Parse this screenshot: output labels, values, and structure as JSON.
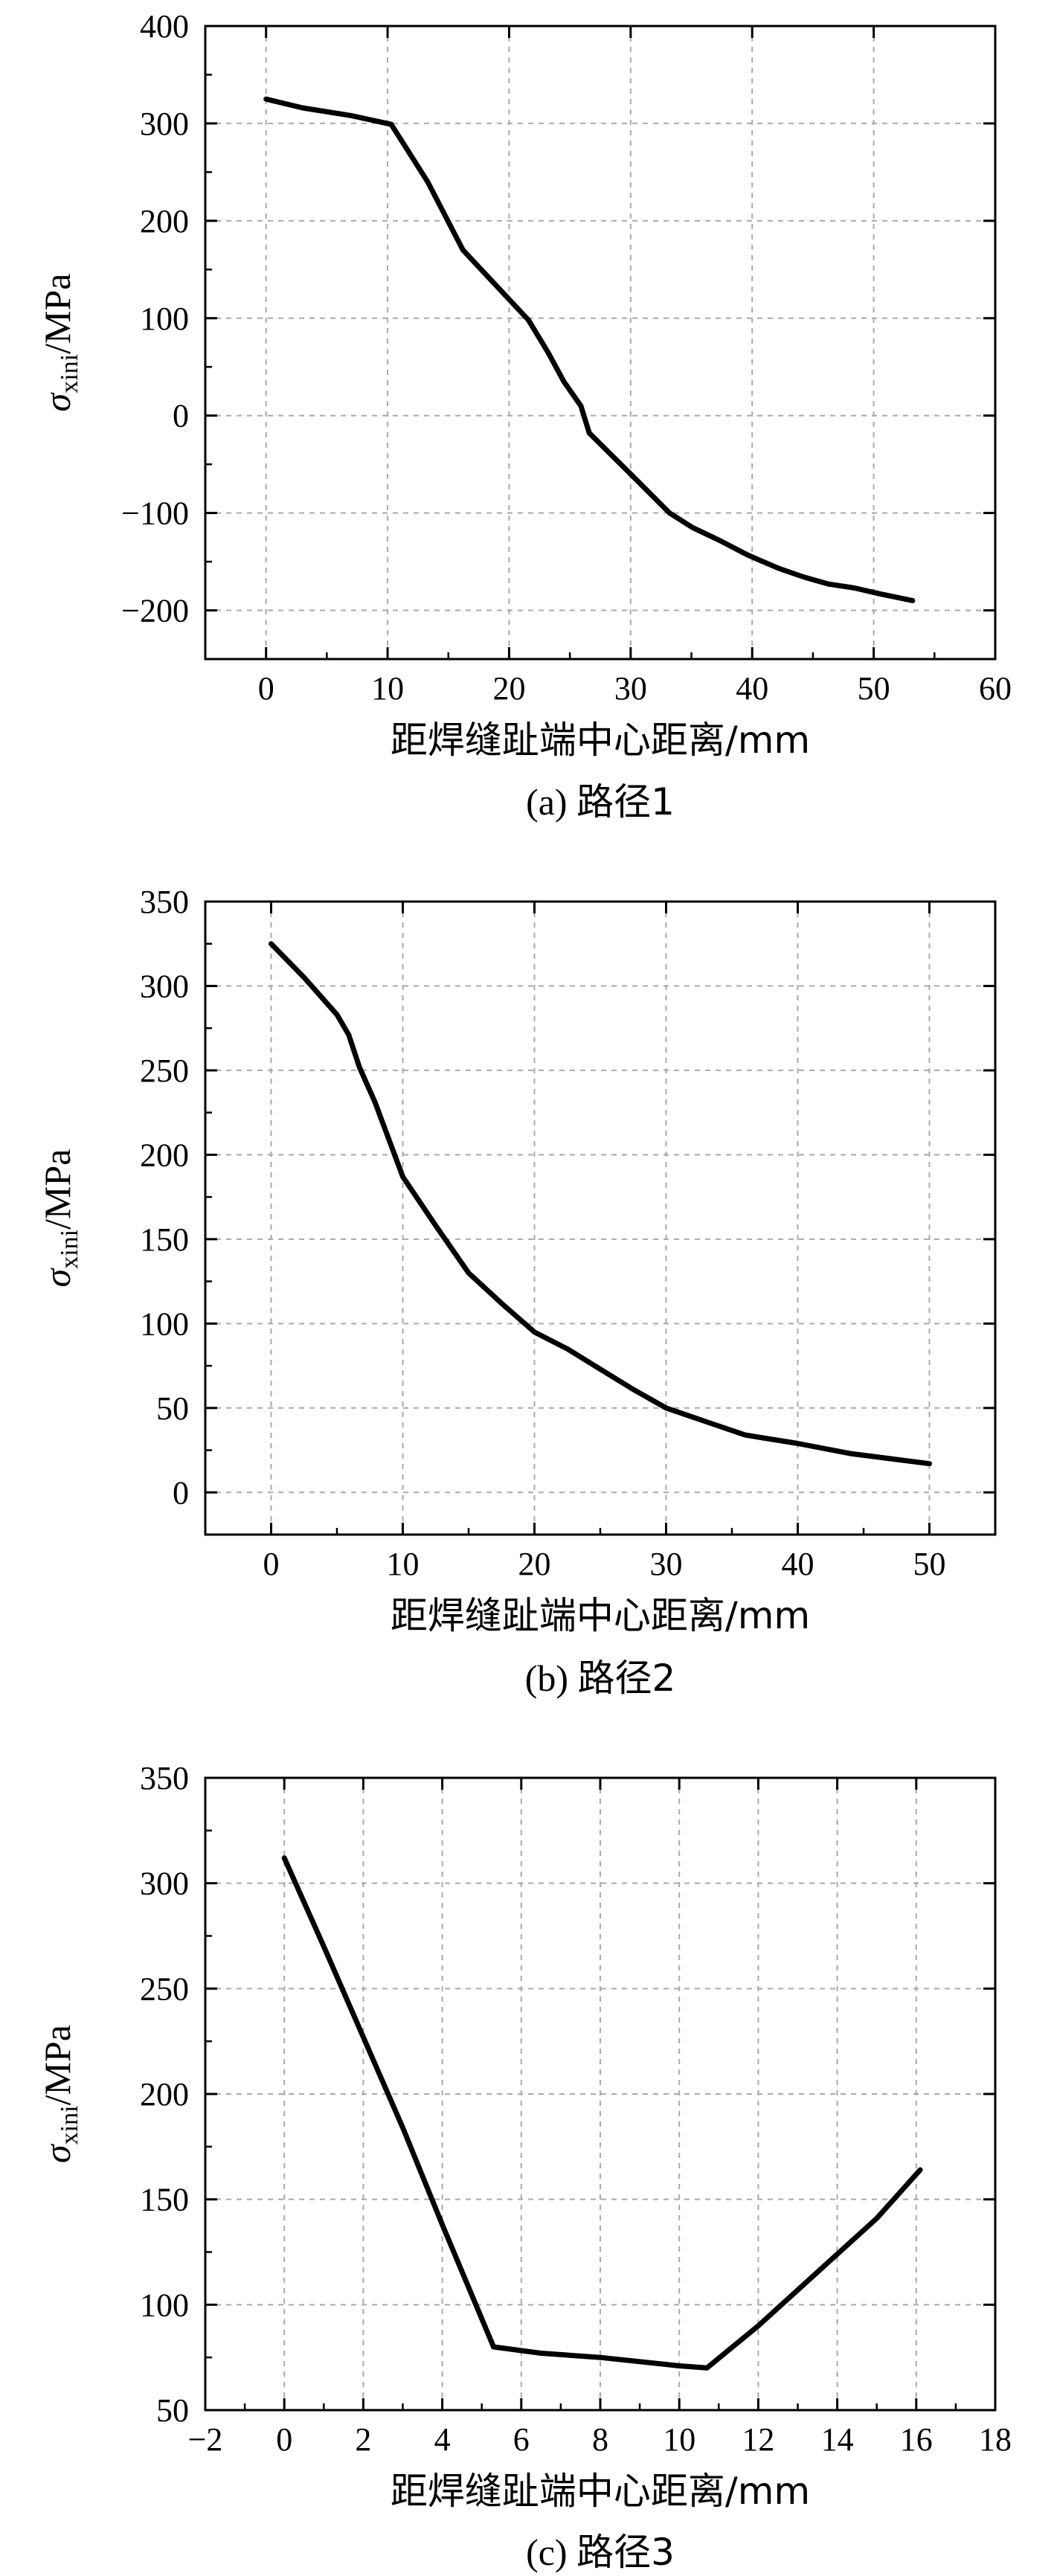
{
  "chart_data": [
    {
      "type": "line",
      "caption_prefix": "(a) ",
      "caption_cjk": "路径1",
      "xlabel": "距焊缝趾端中心距离/mm",
      "ylabel_main": "σ",
      "ylabel_sub": "xini",
      "ylabel_unit": "/MPa",
      "xlim": [
        -5,
        60
      ],
      "ylim": [
        -250,
        400
      ],
      "xticks": [
        0,
        10,
        20,
        30,
        40,
        50,
        60
      ],
      "yticks": [
        -200,
        -100,
        0,
        100,
        200,
        300,
        400
      ],
      "xtick_labels": [
        "0",
        "10",
        "20",
        "30",
        "40",
        "50",
        "60"
      ],
      "ytick_labels": [
        "−200",
        "−100",
        "0",
        "100",
        "200",
        "300",
        "400"
      ],
      "grid": true,
      "series": [
        {
          "x": [
            0,
            3,
            7,
            10.3,
            13.3,
            16.2,
            19.2,
            21.6,
            23.2,
            24.5,
            25.9,
            26.6,
            30,
            33.2,
            35.1,
            37.3,
            39.6,
            42.2,
            44.3,
            46.3,
            48.4,
            50.5,
            53.2
          ],
          "y": [
            325,
            316,
            308,
            299,
            240,
            170,
            130,
            98,
            65,
            35,
            10,
            -18,
            -60,
            -100,
            -115,
            -128,
            -143,
            -157,
            -166,
            -173,
            -177,
            -183,
            -190
          ]
        }
      ]
    },
    {
      "type": "line",
      "caption_prefix": "(b) ",
      "caption_cjk": "路径2",
      "xlabel": "距焊缝趾端中心距离/mm",
      "ylabel_main": "σ",
      "ylabel_sub": "xini",
      "ylabel_unit": "/MPa",
      "xlim": [
        -5,
        55
      ],
      "ylim": [
        -25,
        350
      ],
      "xticks": [
        0,
        10,
        20,
        30,
        40,
        50
      ],
      "yticks": [
        0,
        50,
        100,
        150,
        200,
        250,
        300,
        350
      ],
      "xtick_labels": [
        "0",
        "10",
        "20",
        "30",
        "40",
        "50"
      ],
      "ytick_labels": [
        "0",
        "50",
        "100",
        "150",
        "200",
        "250",
        "300",
        "350"
      ],
      "grid": true,
      "series": [
        {
          "x": [
            0,
            2.5,
            5,
            5.9,
            6.7,
            7.9,
            10,
            12.5,
            15,
            17.5,
            20,
            22.5,
            25,
            27.5,
            30,
            33,
            36,
            40,
            44,
            47,
            50
          ],
          "y": [
            325,
            305,
            283,
            271,
            252,
            231,
            187,
            158,
            130,
            112,
            95,
            85,
            73,
            61,
            50,
            42,
            34,
            29,
            23,
            20,
            17
          ]
        }
      ]
    },
    {
      "type": "line",
      "caption_prefix": "(c) ",
      "caption_cjk": "路径3",
      "xlabel": "距焊缝趾端中心距离/mm",
      "ylabel_main": "σ",
      "ylabel_sub": "xini",
      "ylabel_unit": "/MPa",
      "xlim": [
        -2,
        18
      ],
      "ylim": [
        50,
        350
      ],
      "xticks": [
        -2,
        0,
        2,
        4,
        6,
        8,
        10,
        12,
        14,
        16,
        18
      ],
      "yticks": [
        50,
        100,
        150,
        200,
        250,
        300,
        350
      ],
      "xtick_labels": [
        "−2",
        "0",
        "2",
        "4",
        "6",
        "8",
        "10",
        "12",
        "14",
        "16",
        "18"
      ],
      "ytick_labels": [
        "50",
        "100",
        "150",
        "200",
        "250",
        "300",
        "350"
      ],
      "grid": true,
      "series": [
        {
          "x": [
            0,
            1,
            2,
            3,
            4,
            5.3,
            6.5,
            8,
            9,
            10,
            10.7,
            12,
            13,
            14,
            15,
            16.1
          ],
          "y": [
            312,
            270,
            227,
            184,
            138,
            80,
            77,
            75,
            73,
            71,
            70,
            90,
            107,
            124,
            141,
            164
          ]
        }
      ]
    }
  ]
}
